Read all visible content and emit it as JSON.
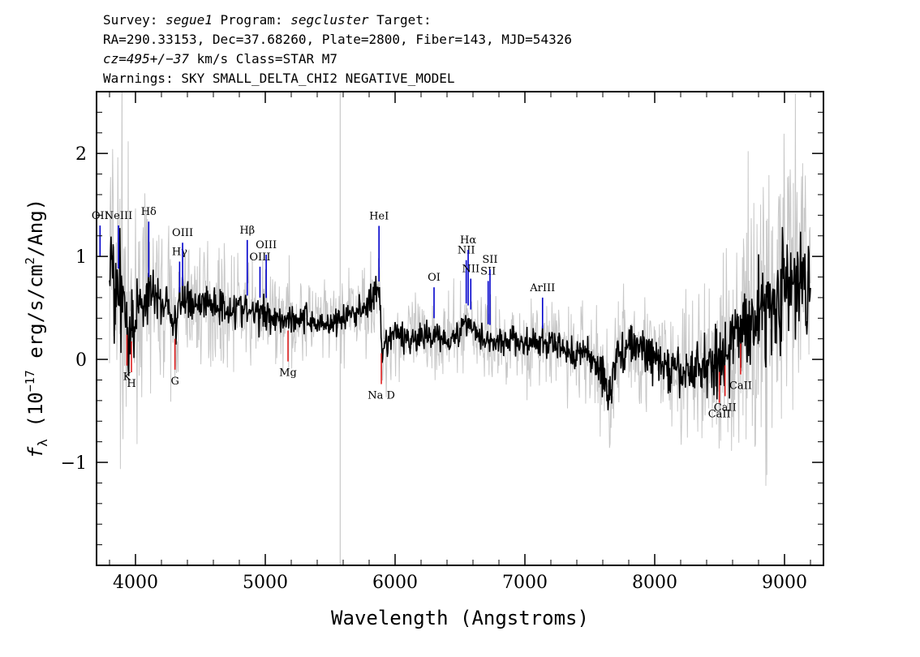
{
  "header": {
    "line1": {
      "a": "Survey: ",
      "survey": "segue1",
      "b": " Program: ",
      "program": "segcluster",
      "c": " Target:"
    },
    "line2": "RA=290.33153, Dec=37.68260, Plate=2800, Fiber=143, MJD=54326",
    "line3": {
      "cz": "cz=495+/−37",
      "rest": " km/s Class=STAR M7"
    },
    "line4": "Warnings: SKY SMALL_DELTA_CHI2 NEGATIVE_MODEL"
  },
  "chart_data": {
    "type": "line",
    "xlabel": "Wavelength (Angstroms)",
    "ylabel_parts": {
      "f": "f",
      "lambda": "λ",
      "pre": " (10",
      "exp1": "−17",
      "mid": " erg/s/cm",
      "exp2": "2",
      "post": "/Ang)"
    },
    "xlim": [
      3700,
      9300
    ],
    "ylim": [
      -2.0,
      2.6
    ],
    "xticks": [
      4000,
      5000,
      6000,
      7000,
      8000,
      9000
    ],
    "xtick_labels": [
      "4000",
      "5000",
      "6000",
      "7000",
      "8000",
      "9000"
    ],
    "yticks": [
      -1,
      0,
      1,
      2
    ],
    "ytick_labels": [
      "−1",
      "0",
      "1",
      "2"
    ],
    "grid": false,
    "colors": {
      "spectrum": "#000000",
      "error": "#c8c8c8",
      "emission": "#0000cc",
      "absorption": "#e02020",
      "sky_line": "#c8c8c8"
    },
    "sky_line_x": 5577,
    "series": [
      {
        "role": "spectrum",
        "x": [
          3800,
          3850,
          3900,
          3950,
          4000,
          4050,
          4100,
          4150,
          4200,
          4250,
          4300,
          4350,
          4400,
          4450,
          4500,
          4600,
          4700,
          4800,
          4900,
          5000,
          5100,
          5200,
          5300,
          5400,
          5500,
          5600,
          5700,
          5800,
          5850,
          5880,
          5900,
          5950,
          6000,
          6100,
          6200,
          6300,
          6400,
          6500,
          6550,
          6600,
          6700,
          6800,
          6900,
          7000,
          7100,
          7200,
          7300,
          7400,
          7500,
          7600,
          7650,
          7700,
          7800,
          7900,
          8000,
          8100,
          8200,
          8300,
          8400,
          8500,
          8600,
          8700,
          8800,
          8900,
          9000,
          9100,
          9150,
          9200
        ],
        "y": [
          0.85,
          0.75,
          0.7,
          0.2,
          0.45,
          0.55,
          0.65,
          0.6,
          0.55,
          0.55,
          0.3,
          0.55,
          0.6,
          0.55,
          0.55,
          0.55,
          0.5,
          0.5,
          0.45,
          0.45,
          0.4,
          0.4,
          0.4,
          0.35,
          0.35,
          0.4,
          0.45,
          0.55,
          0.65,
          0.6,
          0.0,
          0.2,
          0.25,
          0.2,
          0.2,
          0.25,
          0.2,
          0.25,
          0.4,
          0.3,
          0.2,
          0.15,
          0.2,
          0.15,
          0.15,
          0.15,
          0.1,
          0.05,
          0.05,
          -0.15,
          -0.35,
          0.0,
          0.15,
          0.1,
          0.0,
          -0.1,
          -0.15,
          -0.1,
          -0.05,
          0.0,
          0.15,
          0.35,
          0.45,
          0.55,
          0.7,
          0.65,
          0.85,
          0.7
        ]
      },
      {
        "role": "error",
        "x": [
          3750,
          3800,
          3900,
          4000,
          4200,
          4400,
          4600,
          4800,
          5000,
          5200,
          5400,
          5600,
          5800,
          6000,
          6200,
          6400,
          6600,
          6800,
          7000,
          7200,
          7400,
          7600,
          7800,
          8000,
          8200,
          8400,
          8600,
          8800,
          9000,
          9200
        ],
        "y": [
          0.9,
          0.9,
          0.8,
          0.45,
          0.35,
          0.3,
          0.28,
          0.25,
          0.25,
          0.22,
          0.2,
          0.2,
          0.22,
          0.22,
          0.2,
          0.2,
          0.2,
          0.2,
          0.2,
          0.22,
          0.25,
          0.3,
          0.3,
          0.3,
          0.35,
          0.4,
          0.55,
          0.7,
          0.75,
          0.75
        ]
      }
    ],
    "emission_lines": [
      {
        "label": "OII",
        "x": 3727
      },
      {
        "label": "NeIII",
        "x": 3869
      },
      {
        "label": "Hδ",
        "x": 4102
      },
      {
        "label": "Hγ",
        "x": 4340
      },
      {
        "label": "OIII",
        "x": 4363
      },
      {
        "label": "Hβ",
        "x": 4861
      },
      {
        "label": "OIII",
        "x": 4959
      },
      {
        "label": "OIII",
        "x": 5007
      },
      {
        "label": "HeI",
        "x": 5876
      },
      {
        "label": "OI",
        "x": 6300
      },
      {
        "label": "NII",
        "x": 6548
      },
      {
        "label": "Hα",
        "x": 6563
      },
      {
        "label": "NII",
        "x": 6583
      },
      {
        "label": "SII",
        "x": 6717
      },
      {
        "label": "SII",
        "x": 6731
      },
      {
        "label": "ArIII",
        "x": 7136
      }
    ],
    "absorption_lines": [
      {
        "label": "K",
        "x": 3934
      },
      {
        "label": "H",
        "x": 3969
      },
      {
        "label": "G",
        "x": 4304
      },
      {
        "label": "Mg",
        "x": 5175
      },
      {
        "label": "Na D",
        "x": 5894
      },
      {
        "label": "CaII",
        "x": 8498
      },
      {
        "label": "CaII",
        "x": 8542
      },
      {
        "label": "CaII",
        "x": 8662
      }
    ]
  }
}
